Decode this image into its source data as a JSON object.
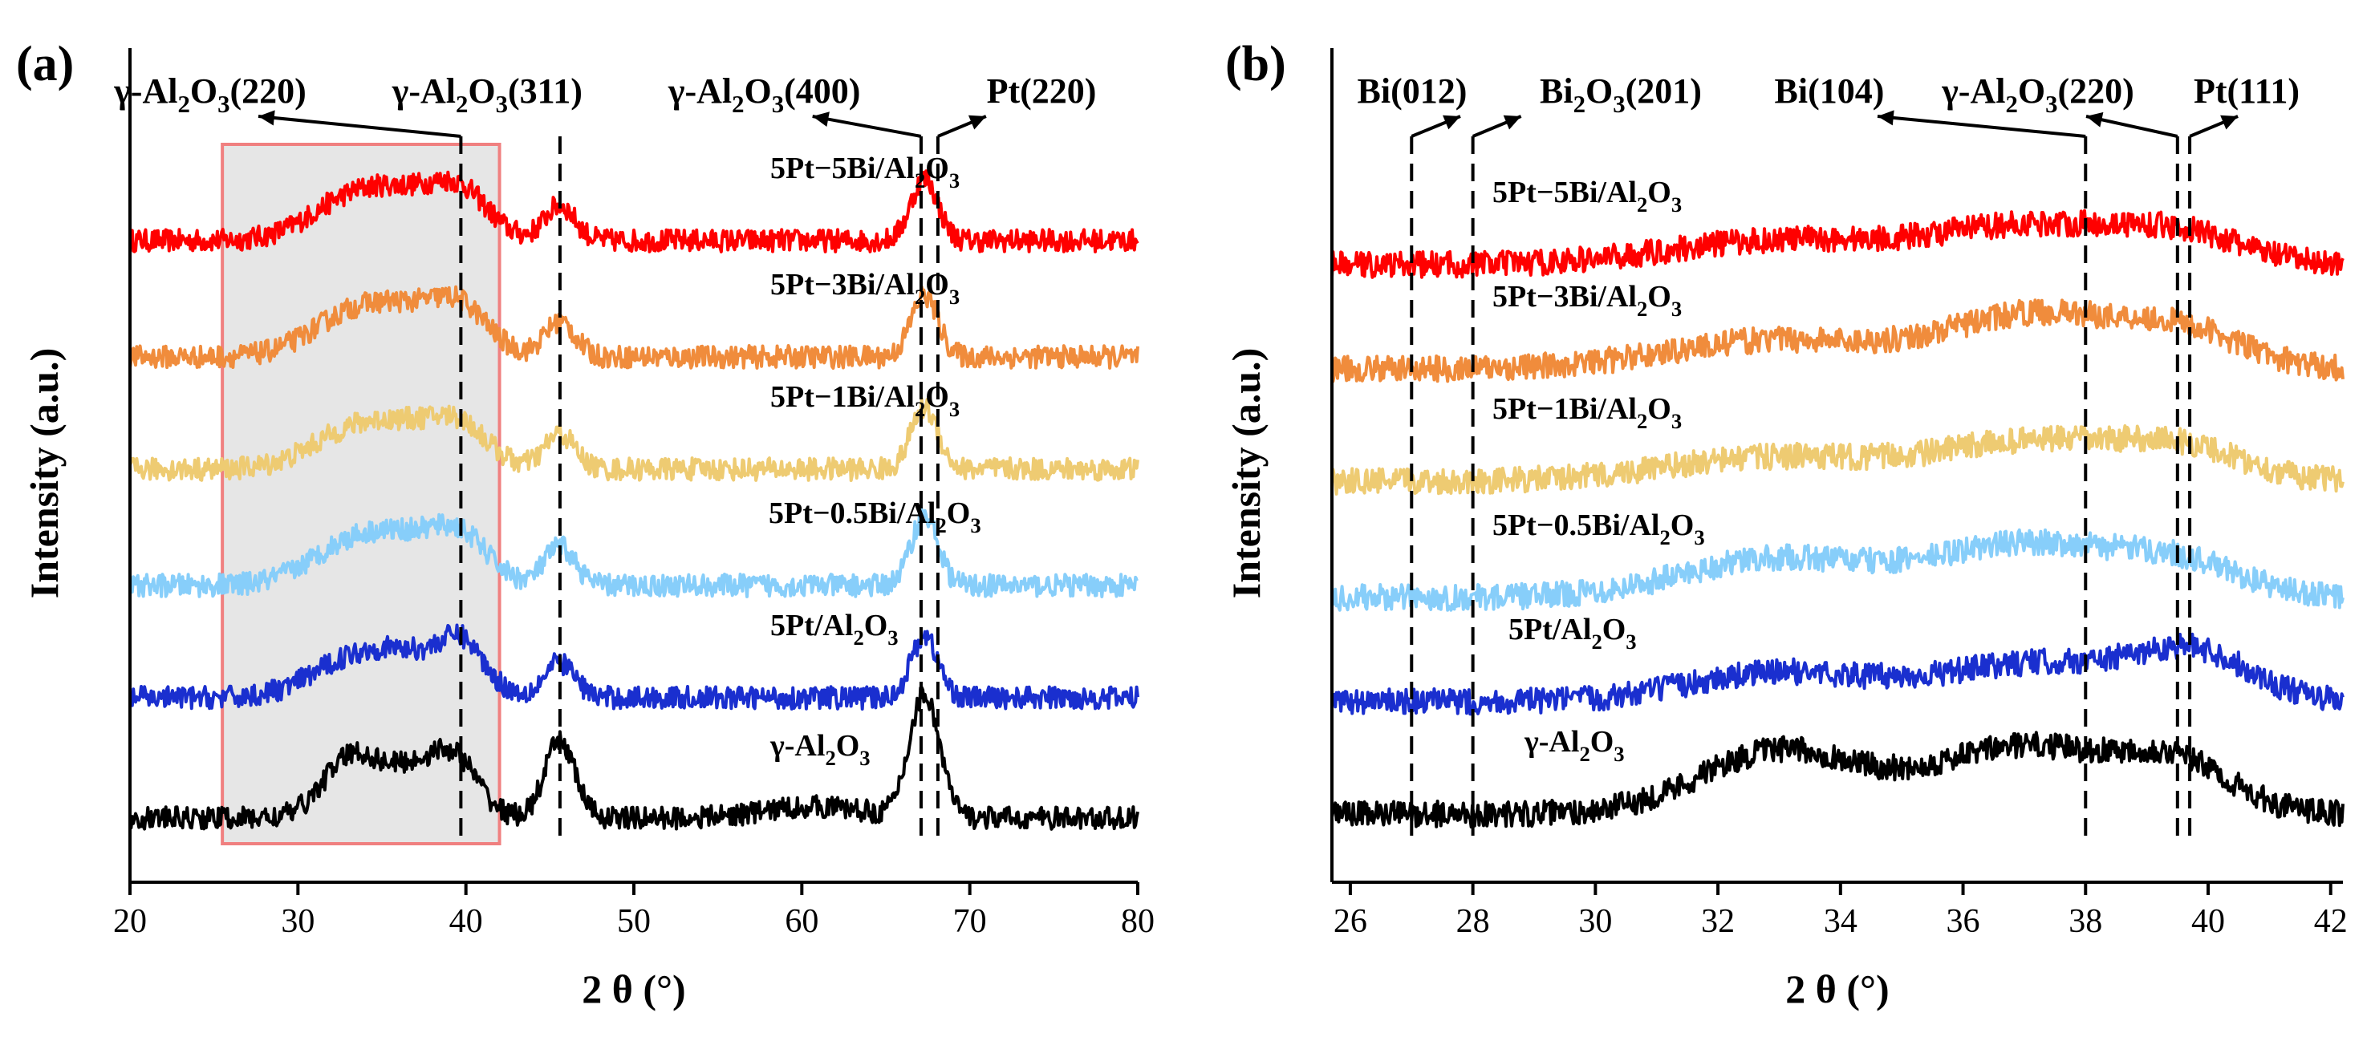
{
  "chart_data": [
    {
      "type": "line",
      "panel": "(a)",
      "xlabel": "2 θ (°)",
      "ylabel": "Intensity (a.u.)",
      "xlim": [
        20,
        80
      ],
      "xticks": [
        20,
        30,
        40,
        50,
        60,
        70,
        80
      ],
      "y_ticks_shown": false,
      "highlight_region": {
        "x_range": [
          25.5,
          42
        ],
        "fill": "#e6e6e6",
        "stroke": "#f08080"
      },
      "peak_markers": [
        {
          "label_main": "γ-Al",
          "label_sub1": "2",
          "label_mid": "O",
          "label_sub2": "3",
          "label_tail": "(220)",
          "x": 39.7,
          "arrow": "up-left"
        },
        {
          "label_main": "γ-Al",
          "label_sub1": "2",
          "label_mid": "O",
          "label_sub2": "3",
          "label_tail": "(311)",
          "x": 45.6,
          "arrow": "none"
        },
        {
          "label_main": "γ-Al",
          "label_sub1": "2",
          "label_mid": "O",
          "label_sub2": "3",
          "label_tail": "(400)",
          "x": 67.1,
          "arrow": "up-left"
        },
        {
          "label_main": "Pt(220)",
          "label_sub1": "",
          "label_mid": "",
          "label_sub2": "",
          "label_tail": "",
          "x": 68.1,
          "arrow": "up-right"
        }
      ],
      "series": [
        {
          "name_main": "5Pt−5Bi/Al",
          "name_sub1": "2",
          "name_mid": "O",
          "name_sub2": "3",
          "color": "#ff0000",
          "baseline": 0.0,
          "peaks": [
            [
              33.0,
              0.9,
              2.5
            ],
            [
              37.3,
              1.1,
              2.8
            ],
            [
              39.8,
              0.7,
              1.5
            ],
            [
              45.6,
              0.9,
              0.9
            ],
            [
              67.3,
              1.6,
              0.8
            ]
          ]
        },
        {
          "name_main": "5Pt−3Bi/Al",
          "name_sub1": "2",
          "name_mid": "O",
          "name_sub2": "3",
          "color": "#f08c3c",
          "baseline": 0.0,
          "peaks": [
            [
              33.0,
              0.9,
              2.5
            ],
            [
              37.3,
              1.1,
              2.8
            ],
            [
              39.8,
              0.7,
              1.5
            ],
            [
              45.6,
              0.9,
              0.9
            ],
            [
              67.3,
              1.6,
              0.8
            ]
          ]
        },
        {
          "name_main": "5Pt−1Bi/Al",
          "name_sub1": "2",
          "name_mid": "O",
          "name_sub2": "3",
          "color": "#eecb72",
          "baseline": 0.0,
          "peaks": [
            [
              33.0,
              0.8,
              2.5
            ],
            [
              37.3,
              1.0,
              2.8
            ],
            [
              39.8,
              0.6,
              1.5
            ],
            [
              45.6,
              0.9,
              0.9
            ],
            [
              67.3,
              1.6,
              0.8
            ]
          ]
        },
        {
          "name_main": "5Pt−0.5Bi/Al",
          "name_sub1": "2",
          "name_mid": "O",
          "name_sub2": "3",
          "color": "#87cefa",
          "baseline": 0.0,
          "peaks": [
            [
              33.0,
              0.9,
              2.5
            ],
            [
              37.3,
              1.1,
              2.8
            ],
            [
              39.8,
              0.7,
              1.5
            ],
            [
              45.6,
              1.0,
              0.9
            ],
            [
              67.3,
              1.8,
              0.8
            ]
          ]
        },
        {
          "name_main": "5Pt/Al",
          "name_sub1": "2",
          "name_mid": "O",
          "name_sub2": "3",
          "color": "#1a2fcf",
          "baseline": 0.0,
          "peaks": [
            [
              33.0,
              0.8,
              2.5
            ],
            [
              37.3,
              1.0,
              2.8
            ],
            [
              39.8,
              0.9,
              1.2
            ],
            [
              45.6,
              0.9,
              0.9
            ],
            [
              67.3,
              1.6,
              0.8
            ]
          ]
        },
        {
          "name_main": "γ-Al",
          "name_sub1": "2",
          "name_mid": "O",
          "name_sub2": "3",
          "color": "#000000",
          "baseline": 0.0,
          "peaks": [
            [
              33.0,
              1.4,
              1.6
            ],
            [
              37.0,
              1.3,
              2.2
            ],
            [
              39.5,
              1.0,
              1.3
            ],
            [
              45.6,
              2.0,
              0.9
            ],
            [
              60.8,
              0.3,
              3.0
            ],
            [
              67.3,
              3.2,
              0.9
            ]
          ]
        }
      ]
    },
    {
      "type": "line",
      "panel": "(b)",
      "xlabel": "2 θ (°)",
      "ylabel": "Intensity (a.u.)",
      "xlim": [
        25.7,
        42.2
      ],
      "xticks": [
        26,
        28,
        30,
        32,
        34,
        36,
        38,
        40,
        42
      ],
      "y_ticks_shown": false,
      "peak_markers": [
        {
          "label_main": "Bi(012)",
          "label_sub1": "",
          "label_mid": "",
          "label_sub2": "",
          "label_tail": "",
          "x": 27.0,
          "arrow": "up-left"
        },
        {
          "label_main": "Bi",
          "label_sub1": "2",
          "label_mid": "O",
          "label_sub2": "3",
          "label_tail": "(201)",
          "x": 28.0,
          "arrow": "up-right"
        },
        {
          "label_main": "Bi(104)",
          "label_sub1": "",
          "label_mid": "",
          "label_sub2": "",
          "label_tail": "",
          "x": 38.0,
          "arrow": "up-left"
        },
        {
          "label_main": "γ-Al",
          "label_sub1": "2",
          "label_mid": "O",
          "label_sub2": "3",
          "label_tail": "(220)",
          "x": 39.5,
          "arrow": "up-left"
        },
        {
          "label_main": "Pt(111)",
          "label_sub1": "",
          "label_mid": "",
          "label_sub2": "",
          "label_tail": "",
          "x": 39.7,
          "arrow": "up-right"
        }
      ],
      "series": [
        {
          "name_main": "5Pt−5Bi/Al",
          "name_sub1": "2",
          "name_mid": "O",
          "name_sub2": "3",
          "color": "#ff0000",
          "peaks": [
            [
              33.0,
              0.5,
              1.8
            ],
            [
              37.2,
              0.8,
              1.6
            ],
            [
              39.6,
              0.5,
              1.0
            ]
          ]
        },
        {
          "name_main": "5Pt−3Bi/Al",
          "name_sub1": "2",
          "name_mid": "O",
          "name_sub2": "3",
          "color": "#f08c3c",
          "peaks": [
            [
              33.0,
              0.6,
              1.8
            ],
            [
              37.2,
              1.1,
              1.4
            ],
            [
              39.6,
              0.7,
              1.0
            ]
          ]
        },
        {
          "name_main": "5Pt−1Bi/Al",
          "name_sub1": "2",
          "name_mid": "O",
          "name_sub2": "3",
          "color": "#eecb72",
          "peaks": [
            [
              33.0,
              0.5,
              1.8
            ],
            [
              37.2,
              0.8,
              1.5
            ],
            [
              39.6,
              0.6,
              1.0
            ]
          ]
        },
        {
          "name_main": "5Pt−0.5Bi/Al",
          "name_sub1": "2",
          "name_mid": "O",
          "name_sub2": "3",
          "color": "#87cefa",
          "peaks": [
            [
              33.0,
              0.8,
              1.6
            ],
            [
              37.1,
              1.1,
              1.5
            ],
            [
              39.6,
              0.6,
              1.0
            ]
          ]
        },
        {
          "name_main": "5Pt/Al",
          "name_sub1": "2",
          "name_mid": "O",
          "name_sub2": "3",
          "color": "#1a2fcf",
          "peaks": [
            [
              33.0,
              0.6,
              1.5
            ],
            [
              37.3,
              0.8,
              1.6
            ],
            [
              39.8,
              0.9,
              0.9
            ]
          ]
        },
        {
          "name_main": "γ-Al",
          "name_sub1": "2",
          "name_mid": "O",
          "name_sub2": "3",
          "color": "#000000",
          "peaks": [
            [
              33.0,
              1.3,
              1.3
            ],
            [
              37.0,
              1.4,
              1.5
            ],
            [
              39.5,
              0.9,
              0.9
            ]
          ]
        }
      ]
    }
  ]
}
